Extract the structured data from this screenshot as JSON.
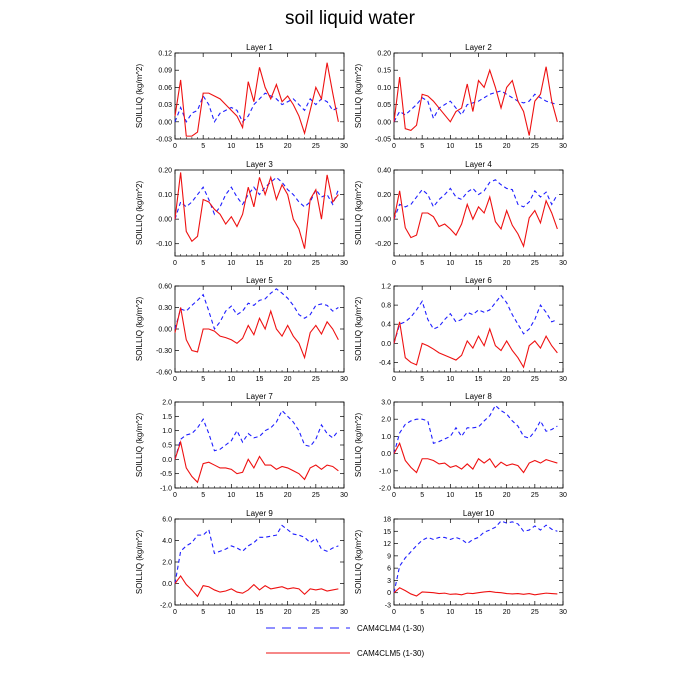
{
  "title": "soil liquid water",
  "colors": {
    "clm4": "#1f1fff",
    "clm5": "#ee1111"
  },
  "legend": {
    "clm4_label": "CAM4CLM4 (1-30)",
    "clm5_label": "CAM4CLM5 (1-30)"
  },
  "chart_data": [
    {
      "type": "line",
      "title": "Layer 1",
      "ylabel": "SOILLIQ  (kg/m^2)",
      "xlim": [
        0,
        30
      ],
      "xticks": [
        0,
        5,
        10,
        15,
        20,
        25,
        30
      ],
      "ylim": [
        -0.03,
        0.12
      ],
      "yticks": [
        -0.03,
        0.0,
        0.03,
        0.06,
        0.09,
        0.12
      ],
      "yfmt": 2,
      "series": [
        {
          "name": "CAM4CLM4 (1-30)",
          "style": "dashed",
          "values": [
            0.0,
            0.025,
            0.0,
            0.015,
            0.02,
            0.045,
            0.03,
            0.0,
            0.015,
            0.02,
            0.025,
            0.02,
            0.0,
            0.01,
            0.03,
            0.04,
            0.05,
            0.045,
            0.04,
            0.03,
            0.035,
            0.04,
            0.03,
            0.02,
            0.04,
            0.03,
            0.04,
            0.035,
            0.02,
            0.025
          ]
        },
        {
          "name": "CAM4CLM5 (1-30)",
          "style": "solid",
          "values": [
            0.01,
            0.073,
            -0.025,
            -0.025,
            -0.018,
            0.05,
            0.05,
            0.045,
            0.04,
            0.03,
            0.02,
            0.01,
            -0.01,
            0.07,
            0.035,
            0.095,
            0.06,
            0.04,
            0.065,
            0.035,
            0.045,
            0.03,
            0.01,
            -0.02,
            0.02,
            0.06,
            0.04,
            0.103,
            0.05,
            0.0
          ]
        }
      ]
    },
    {
      "type": "line",
      "title": "Layer 2",
      "ylabel": "SOILLIQ  (kg/m^2)",
      "xlim": [
        0,
        30
      ],
      "xticks": [
        0,
        5,
        10,
        15,
        20,
        25,
        30
      ],
      "ylim": [
        -0.05,
        0.2
      ],
      "yticks": [
        -0.05,
        0.0,
        0.05,
        0.1,
        0.15,
        0.2
      ],
      "yfmt": 2,
      "series": [
        {
          "name": "CAM4CLM4 (1-30)",
          "style": "dashed",
          "values": [
            0.0,
            0.03,
            0.02,
            0.035,
            0.05,
            0.07,
            0.06,
            0.01,
            0.04,
            0.05,
            0.06,
            0.04,
            0.02,
            0.05,
            0.055,
            0.06,
            0.07,
            0.08,
            0.085,
            0.09,
            0.08,
            0.07,
            0.06,
            0.055,
            0.06,
            0.08,
            0.07,
            0.06,
            0.055,
            0.05
          ]
        },
        {
          "name": "CAM4CLM5 (1-30)",
          "style": "solid",
          "values": [
            0.0,
            0.13,
            -0.02,
            -0.025,
            -0.01,
            0.08,
            0.075,
            0.06,
            0.04,
            0.02,
            0.0,
            0.03,
            0.04,
            0.11,
            0.03,
            0.12,
            0.1,
            0.15,
            0.1,
            0.04,
            0.1,
            0.12,
            0.06,
            0.03,
            -0.04,
            0.06,
            0.08,
            0.16,
            0.06,
            0.0
          ]
        }
      ]
    },
    {
      "type": "line",
      "title": "Layer 3",
      "ylabel": "SOILLIQ  (kg/m^2)",
      "xlim": [
        0,
        30
      ],
      "xticks": [
        0,
        5,
        10,
        15,
        20,
        25,
        30
      ],
      "ylim": [
        -0.15,
        0.2
      ],
      "yticks": [
        -0.1,
        0.0,
        0.1,
        0.2
      ],
      "yfmt": 2,
      "series": [
        {
          "name": "CAM4CLM4 (1-30)",
          "style": "dashed",
          "values": [
            0.0,
            0.07,
            0.05,
            0.07,
            0.1,
            0.13,
            0.08,
            0.02,
            0.05,
            0.1,
            0.13,
            0.09,
            0.06,
            0.1,
            0.13,
            0.1,
            0.13,
            0.15,
            0.17,
            0.15,
            0.12,
            0.1,
            0.07,
            0.05,
            0.07,
            0.12,
            0.09,
            0.1,
            0.06,
            0.12
          ]
        },
        {
          "name": "CAM4CLM5 (1-30)",
          "style": "solid",
          "values": [
            0.0,
            0.19,
            -0.05,
            -0.09,
            -0.07,
            0.08,
            0.07,
            0.04,
            0.02,
            -0.02,
            0.01,
            -0.03,
            0.02,
            0.13,
            0.05,
            0.17,
            0.1,
            0.17,
            0.08,
            0.14,
            0.1,
            0.0,
            -0.04,
            -0.12,
            0.08,
            0.12,
            0.0,
            0.18,
            0.07,
            0.1
          ]
        }
      ]
    },
    {
      "type": "line",
      "title": "Layer 4",
      "ylabel": "SOILLIQ  (kg/m^2)",
      "xlim": [
        0,
        30
      ],
      "xticks": [
        0,
        5,
        10,
        15,
        20,
        25,
        30
      ],
      "ylim": [
        -0.3,
        0.4
      ],
      "yticks": [
        -0.2,
        0.0,
        0.2,
        0.4
      ],
      "yfmt": 2,
      "series": [
        {
          "name": "CAM4CLM4 (1-30)",
          "style": "dashed",
          "values": [
            0.0,
            0.12,
            0.1,
            0.12,
            0.18,
            0.24,
            0.2,
            0.1,
            0.16,
            0.2,
            0.25,
            0.18,
            0.16,
            0.22,
            0.25,
            0.2,
            0.23,
            0.3,
            0.32,
            0.28,
            0.25,
            0.24,
            0.12,
            0.1,
            0.14,
            0.23,
            0.18,
            0.22,
            0.12,
            0.2
          ]
        },
        {
          "name": "CAM4CLM5 (1-30)",
          "style": "solid",
          "values": [
            0.0,
            0.23,
            -0.07,
            -0.15,
            -0.13,
            0.05,
            0.05,
            0.02,
            -0.06,
            -0.04,
            -0.08,
            -0.13,
            -0.04,
            0.12,
            0.0,
            0.1,
            0.05,
            0.18,
            -0.02,
            -0.08,
            0.07,
            -0.05,
            -0.12,
            -0.22,
            0.01,
            0.07,
            -0.03,
            0.15,
            0.05,
            -0.08
          ]
        }
      ]
    },
    {
      "type": "line",
      "title": "Layer 5",
      "ylabel": "SOILLIQ  (kg/m^2)",
      "xlim": [
        0,
        30
      ],
      "xticks": [
        0,
        5,
        10,
        15,
        20,
        25,
        30
      ],
      "ylim": [
        -0.6,
        0.6
      ],
      "yticks": [
        -0.6,
        -0.3,
        0.0,
        0.3,
        0.6
      ],
      "yfmt": 2,
      "series": [
        {
          "name": "CAM4CLM4 (1-30)",
          "style": "dashed",
          "values": [
            0.0,
            0.28,
            0.25,
            0.33,
            0.4,
            0.48,
            0.25,
            0.0,
            0.1,
            0.25,
            0.32,
            0.2,
            0.25,
            0.36,
            0.33,
            0.4,
            0.42,
            0.5,
            0.56,
            0.5,
            0.43,
            0.33,
            0.2,
            0.15,
            0.2,
            0.33,
            0.35,
            0.33,
            0.25,
            0.3
          ]
        },
        {
          "name": "CAM4CLM5 (1-30)",
          "style": "solid",
          "values": [
            -0.05,
            0.3,
            -0.15,
            -0.3,
            -0.32,
            0.0,
            0.0,
            -0.03,
            -0.1,
            -0.12,
            -0.15,
            -0.2,
            -0.13,
            0.05,
            -0.08,
            0.15,
            0.0,
            0.25,
            0.0,
            -0.1,
            0.05,
            -0.1,
            -0.2,
            -0.4,
            -0.05,
            0.05,
            -0.07,
            0.1,
            0.0,
            -0.15
          ]
        }
      ]
    },
    {
      "type": "line",
      "title": "Layer 6",
      "ylabel": "SOILLIQ  (kg/m^2)",
      "xlim": [
        0,
        30
      ],
      "xticks": [
        0,
        5,
        10,
        15,
        20,
        25,
        30
      ],
      "ylim": [
        -0.6,
        1.2
      ],
      "yticks": [
        -0.4,
        0.0,
        0.4,
        0.8,
        1.2
      ],
      "yfmt": 1,
      "series": [
        {
          "name": "CAM4CLM4 (1-30)",
          "style": "dashed",
          "values": [
            0.0,
            0.4,
            0.45,
            0.55,
            0.7,
            0.88,
            0.5,
            0.3,
            0.35,
            0.5,
            0.62,
            0.45,
            0.5,
            0.65,
            0.6,
            0.7,
            0.65,
            0.7,
            0.85,
            1.0,
            0.85,
            0.6,
            0.4,
            0.2,
            0.3,
            0.5,
            0.8,
            0.65,
            0.45,
            0.5
          ]
        },
        {
          "name": "CAM4CLM5 (1-30)",
          "style": "solid",
          "values": [
            0.0,
            0.45,
            -0.3,
            -0.4,
            -0.45,
            0.0,
            -0.05,
            -0.12,
            -0.2,
            -0.25,
            -0.3,
            -0.35,
            -0.25,
            0.05,
            -0.1,
            0.15,
            -0.05,
            0.3,
            -0.05,
            -0.15,
            0.05,
            -0.15,
            -0.3,
            -0.5,
            -0.05,
            0.05,
            -0.1,
            0.15,
            -0.05,
            -0.2
          ]
        }
      ]
    },
    {
      "type": "line",
      "title": "Layer 7",
      "ylabel": "SOILLIQ  (kg/m^2)",
      "xlim": [
        0,
        30
      ],
      "xticks": [
        0,
        5,
        10,
        15,
        20,
        25,
        30
      ],
      "ylim": [
        -1.0,
        2.0
      ],
      "yticks": [
        -1.0,
        -0.5,
        0.0,
        0.5,
        1.0,
        1.5,
        2.0
      ],
      "yfmt": 1,
      "series": [
        {
          "name": "CAM4CLM4 (1-30)",
          "style": "dashed",
          "values": [
            0.0,
            0.7,
            0.85,
            0.9,
            1.1,
            1.4,
            0.9,
            0.3,
            0.35,
            0.5,
            0.65,
            1.0,
            0.6,
            0.9,
            0.75,
            0.8,
            1.0,
            1.1,
            1.3,
            1.7,
            1.5,
            1.3,
            1.0,
            0.5,
            0.45,
            0.7,
            1.2,
            0.9,
            0.75,
            1.0
          ]
        },
        {
          "name": "CAM4CLM5 (1-30)",
          "style": "solid",
          "values": [
            0.0,
            0.6,
            -0.3,
            -0.6,
            -0.8,
            -0.15,
            -0.1,
            -0.2,
            -0.3,
            -0.3,
            -0.35,
            -0.5,
            -0.45,
            0.0,
            -0.3,
            0.1,
            -0.2,
            -0.2,
            -0.35,
            -0.25,
            -0.3,
            -0.4,
            -0.5,
            -0.7,
            -0.3,
            -0.2,
            -0.35,
            -0.2,
            -0.25,
            -0.4
          ]
        }
      ]
    },
    {
      "type": "line",
      "title": "Layer 8",
      "ylabel": "SOILLIQ  (kg/m^2)",
      "xlim": [
        0,
        30
      ],
      "xticks": [
        0,
        5,
        10,
        15,
        20,
        25,
        30
      ],
      "ylim": [
        -2.0,
        3.0
      ],
      "yticks": [
        -2.0,
        -1.0,
        0.0,
        1.0,
        2.0,
        3.0
      ],
      "yfmt": 1,
      "series": [
        {
          "name": "CAM4CLM4 (1-30)",
          "style": "dashed",
          "values": [
            0.0,
            1.2,
            1.7,
            1.9,
            2.0,
            2.0,
            1.9,
            0.6,
            0.7,
            0.85,
            1.0,
            1.5,
            1.0,
            1.5,
            1.5,
            1.55,
            1.9,
            2.2,
            2.8,
            2.5,
            2.3,
            1.9,
            1.6,
            1.0,
            0.9,
            1.3,
            1.9,
            1.3,
            1.4,
            1.6
          ]
        },
        {
          "name": "CAM4CLM5 (1-30)",
          "style": "solid",
          "values": [
            0.0,
            0.6,
            -0.4,
            -0.8,
            -1.1,
            -0.3,
            -0.3,
            -0.4,
            -0.6,
            -0.55,
            -0.8,
            -0.7,
            -0.9,
            -0.6,
            -0.9,
            -0.3,
            -0.55,
            -0.3,
            -0.8,
            -0.5,
            -0.7,
            -0.6,
            -0.7,
            -1.1,
            -0.55,
            -0.4,
            -0.55,
            -0.35,
            -0.45,
            -0.55
          ]
        }
      ]
    },
    {
      "type": "line",
      "title": "Layer 9",
      "ylabel": "SOILLIQ  (kg/m^2)",
      "xlim": [
        0,
        30
      ],
      "xticks": [
        0,
        5,
        10,
        15,
        20,
        25,
        30
      ],
      "ylim": [
        -2.0,
        6.0
      ],
      "yticks": [
        -2.0,
        0.0,
        2.0,
        4.0,
        6.0
      ],
      "yfmt": 1,
      "series": [
        {
          "name": "CAM4CLM4 (1-30)",
          "style": "dashed",
          "values": [
            0.0,
            3.0,
            3.5,
            3.8,
            4.5,
            4.5,
            5.0,
            2.8,
            3.0,
            3.2,
            3.5,
            3.3,
            3.0,
            3.5,
            3.8,
            4.3,
            4.3,
            4.4,
            4.5,
            5.4,
            5.0,
            4.6,
            4.5,
            4.3,
            3.8,
            4.2,
            3.2,
            3.0,
            3.3,
            3.5
          ]
        },
        {
          "name": "CAM4CLM5 (1-30)",
          "style": "solid",
          "values": [
            0.0,
            0.7,
            -0.1,
            -0.6,
            -1.2,
            -0.2,
            -0.3,
            -0.6,
            -0.8,
            -0.7,
            -0.5,
            -0.8,
            -0.9,
            -0.6,
            -0.1,
            -0.6,
            -0.2,
            -0.5,
            -0.4,
            -0.3,
            -0.5,
            -0.4,
            -0.5,
            -1.0,
            -0.5,
            -0.6,
            -0.5,
            -0.7,
            -0.6,
            -0.5
          ]
        }
      ]
    },
    {
      "type": "line",
      "title": "Layer 10",
      "ylabel": "SOILLIQ  (kg/m^2)",
      "xlim": [
        0,
        30
      ],
      "xticks": [
        0,
        5,
        10,
        15,
        20,
        25,
        30
      ],
      "ylim": [
        -3,
        18
      ],
      "yticks": [
        -3,
        0,
        3,
        6,
        9,
        12,
        15,
        18
      ],
      "yfmt": 0,
      "series": [
        {
          "name": "CAM4CLM4 (1-30)",
          "style": "dashed",
          "values": [
            0.0,
            6.5,
            8.5,
            10.0,
            11.5,
            12.8,
            13.5,
            13.0,
            13.5,
            13.5,
            13.0,
            13.5,
            13.0,
            12.0,
            13.0,
            13.5,
            14.8,
            15.3,
            16.0,
            17.5,
            17.0,
            17.3,
            16.8,
            15.0,
            15.3,
            16.3,
            15.3,
            16.5,
            15.5,
            15.0
          ]
        },
        {
          "name": "CAM4CLM5 (1-30)",
          "style": "solid",
          "values": [
            0.0,
            1.2,
            0.5,
            -0.3,
            -0.8,
            0.2,
            0.1,
            0.0,
            -0.2,
            -0.1,
            -0.4,
            -0.3,
            -0.5,
            -0.1,
            -0.2,
            0.0,
            0.2,
            0.3,
            0.1,
            0.0,
            -0.2,
            -0.3,
            -0.2,
            -0.4,
            -0.2,
            -0.5,
            -0.3,
            -0.1,
            -0.2,
            -0.3
          ]
        }
      ]
    }
  ]
}
